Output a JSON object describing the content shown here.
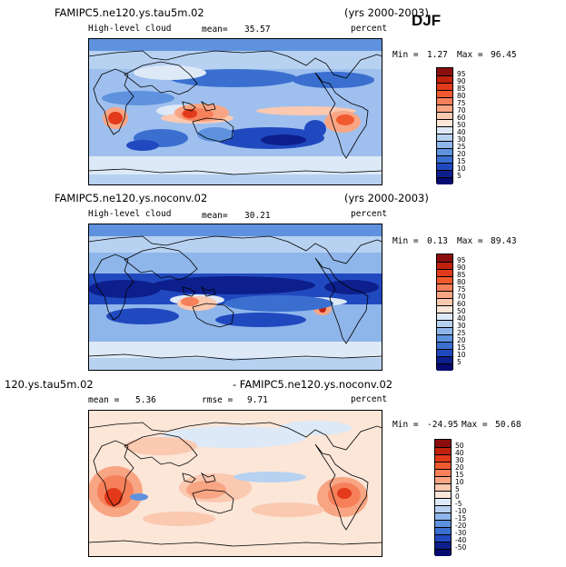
{
  "season": "DJF",
  "panels": [
    {
      "title": "FAMIPC5.ne120.ys.tau5m.02",
      "years": "(yrs 2000-2003)",
      "variable": "High-level cloud",
      "stat_label": "mean=",
      "stat_value": "35.57",
      "units": "percent",
      "min_label": "Min =",
      "min_value": "1.27",
      "max_label": "Max =",
      "max_value": "96.45",
      "colorbar": {
        "labels": [
          "95",
          "90",
          "85",
          "80",
          "75",
          "70",
          "60",
          "50",
          "40",
          "30",
          "25",
          "20",
          "15",
          "10",
          "5"
        ],
        "colors": [
          "#8a0e0e",
          "#c0220c",
          "#e23a1a",
          "#f15a2f",
          "#f5805a",
          "#f8a584",
          "#fbc8b0",
          "#fbe6d8",
          "#dde9f7",
          "#b7d1f1",
          "#8fb6ea",
          "#5f92de",
          "#3a6fd0",
          "#2149bf",
          "#0d1f8c",
          "#070a70"
        ]
      }
    },
    {
      "title": "FAMIPC5.ne120.ys.noconv.02",
      "years": "(yrs 2000-2003)",
      "variable": "High-level cloud",
      "stat_label": "mean=",
      "stat_value": "30.21",
      "units": "percent",
      "min_label": "Min =",
      "min_value": "0.13",
      "max_label": "Max =",
      "max_value": "89.43",
      "colorbar": {
        "labels": [
          "95",
          "90",
          "85",
          "80",
          "75",
          "70",
          "60",
          "50",
          "40",
          "30",
          "25",
          "20",
          "15",
          "10",
          "5"
        ],
        "colors": [
          "#8a0e0e",
          "#c0220c",
          "#e23a1a",
          "#f15a2f",
          "#f5805a",
          "#f8a584",
          "#fbc8b0",
          "#fbe6d8",
          "#dde9f7",
          "#b7d1f1",
          "#8fb6ea",
          "#5f92de",
          "#3a6fd0",
          "#2149bf",
          "#0d1f8c",
          "#070a70"
        ]
      }
    },
    {
      "title_left": "120.ys.tau5m.02",
      "title_right": "- FAMIPC5.ne120.ys.noconv.02",
      "mean_label": "mean =",
      "mean_value": "5.36",
      "rmse_label": "rmse =",
      "rmse_value": "9.71",
      "units": "percent",
      "min_label": "Min =",
      "min_value": "-24.95",
      "max_label": "Max =",
      "max_value": "50.68",
      "colorbar": {
        "labels": [
          "50",
          "40",
          "30",
          "20",
          "15",
          "10",
          "5",
          "0",
          "-5",
          "-10",
          "-15",
          "-20",
          "-30",
          "-40",
          "-50"
        ],
        "colors": [
          "#8a0e0e",
          "#c0220c",
          "#e23a1a",
          "#f15a2f",
          "#f5805a",
          "#f8a584",
          "#fbc8b0",
          "#fbe6d8",
          "#dde9f7",
          "#b7d1f1",
          "#8fb6ea",
          "#5f92de",
          "#3a6fd0",
          "#2149bf",
          "#0d1f8c",
          "#070a70"
        ]
      }
    }
  ]
}
